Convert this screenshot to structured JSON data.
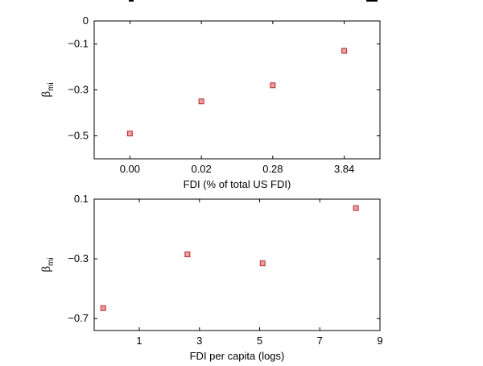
{
  "chart_data": [
    {
      "type": "scatter",
      "title": "",
      "xlabel": "FDI (% of total US FDI)",
      "ylabel_main": "β",
      "ylabel_sub": "mi",
      "categories": [
        "0.00",
        "0.02",
        "0.28",
        "3.84"
      ],
      "values": [
        -0.49,
        -0.35,
        -0.28,
        -0.13
      ],
      "x_tick_labels": [
        "0.00",
        "0.02",
        "0.28",
        "3.84"
      ],
      "y_ticks": [
        0,
        -0.1,
        -0.3,
        -0.5
      ],
      "y_tick_labels": [
        "0",
        "−0.1",
        "−0.3",
        "−0.5"
      ],
      "ylim": [
        -0.6,
        0
      ],
      "grid": false,
      "marker_color": "#c0282d"
    },
    {
      "type": "scatter",
      "title": "",
      "xlabel": "FDI per capita (logs)",
      "ylabel_main": "β",
      "ylabel_sub": "mi",
      "x": [
        -0.2,
        2.6,
        5.1,
        8.2
      ],
      "y": [
        -0.63,
        -0.27,
        -0.33,
        0.04
      ],
      "x_ticks": [
        1,
        3,
        5,
        7,
        9
      ],
      "x_tick_labels": [
        "1",
        "3",
        "5",
        "7",
        "9"
      ],
      "y_ticks": [
        0.1,
        -0.3,
        -0.7
      ],
      "y_tick_labels": [
        "0.1",
        "−0.3",
        "−0.7"
      ],
      "xlim": [
        -0.5,
        9
      ],
      "ylim": [
        -0.78,
        0.1
      ],
      "grid": false,
      "marker_color": "#c0282d"
    }
  ]
}
